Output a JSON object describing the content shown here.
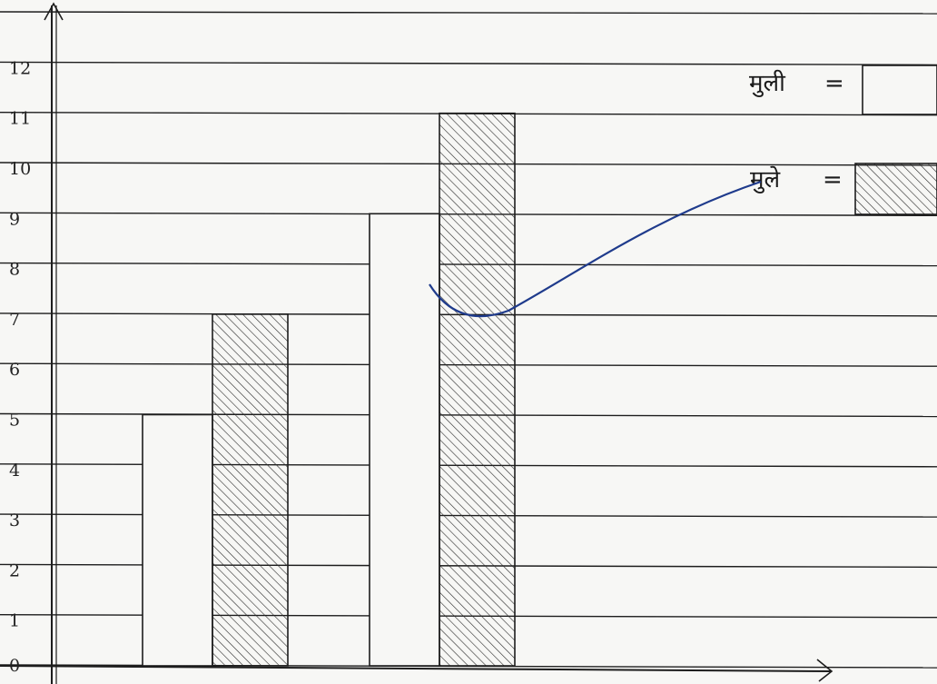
{
  "chart_data": {
    "type": "bar",
    "categories": [
      "",
      ""
    ],
    "series": [
      {
        "name": "मुली",
        "values": [
          5,
          9
        ],
        "fill": "none"
      },
      {
        "name": "मुले",
        "values": [
          7,
          11
        ],
        "fill": "hatched"
      }
    ],
    "ylim": [
      0,
      12
    ],
    "y_ticks": [
      "0",
      "1",
      "2",
      "3",
      "4",
      "5",
      "6",
      "7",
      "8",
      "9",
      "10",
      "11",
      "12"
    ],
    "grid": true,
    "legend_position": "top-right"
  },
  "colors": {
    "ink": "#1d1d1d",
    "paper": "#f7f7f5",
    "pen_blue": "#1f3b8c"
  }
}
